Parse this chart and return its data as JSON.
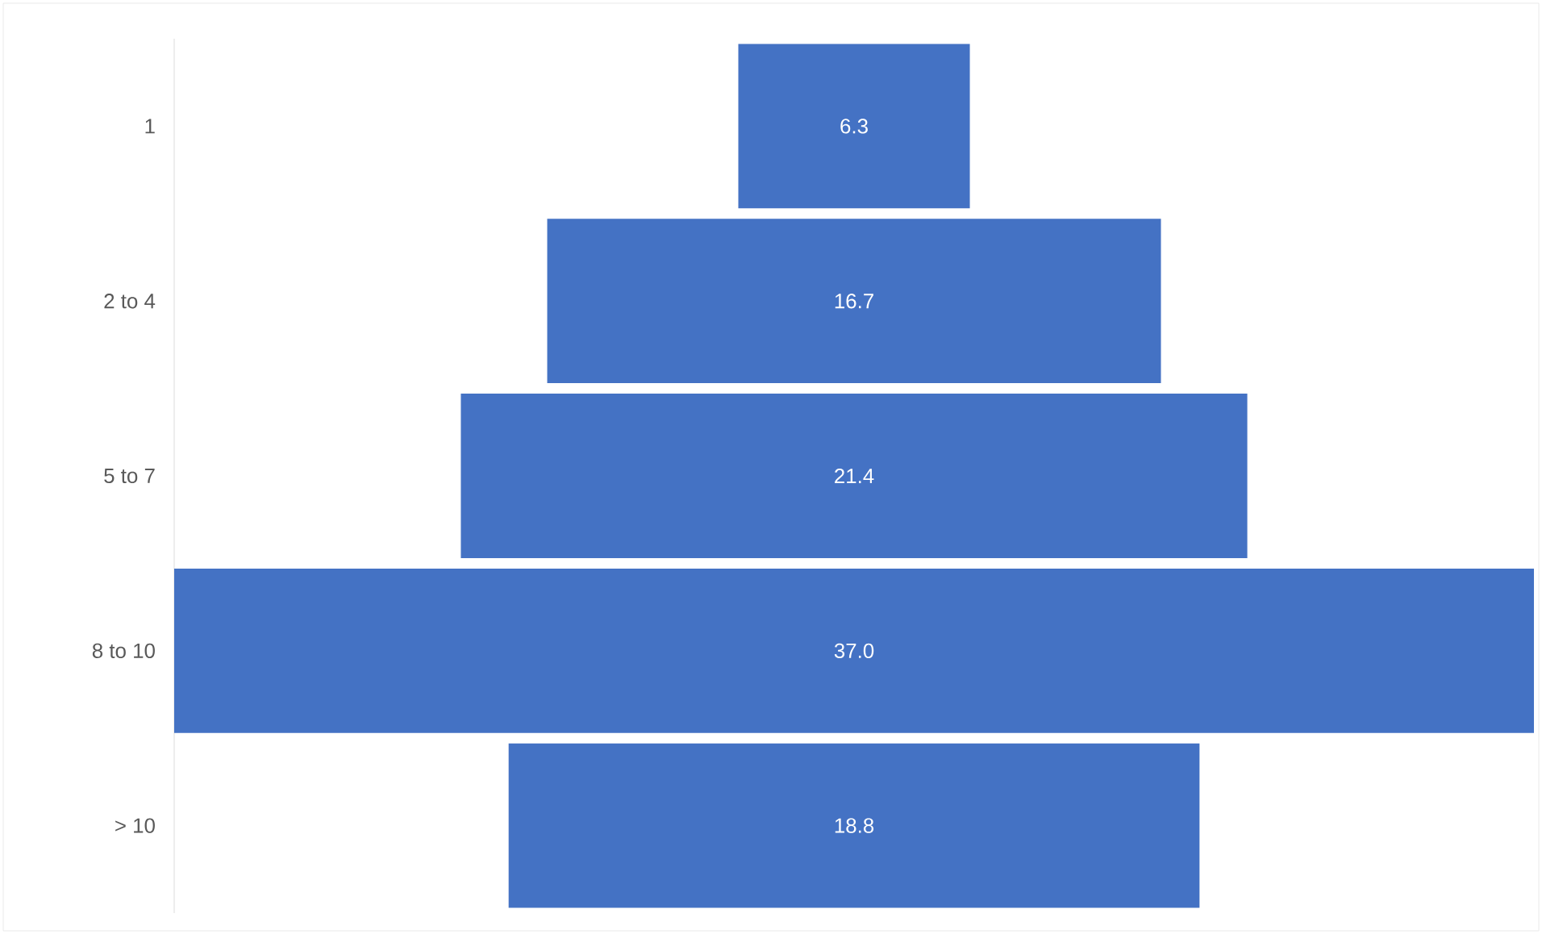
{
  "chart_data": {
    "type": "other",
    "categories": [
      "1",
      "2 to 4",
      "5 to 7",
      "8 to 10",
      "> 10"
    ],
    "values": [
      6.3,
      16.7,
      21.4,
      37.0,
      18.8
    ],
    "value_labels": [
      "6.3",
      "16.7",
      "21.4",
      "37.0",
      "18.8"
    ],
    "color": "#4472c4"
  }
}
